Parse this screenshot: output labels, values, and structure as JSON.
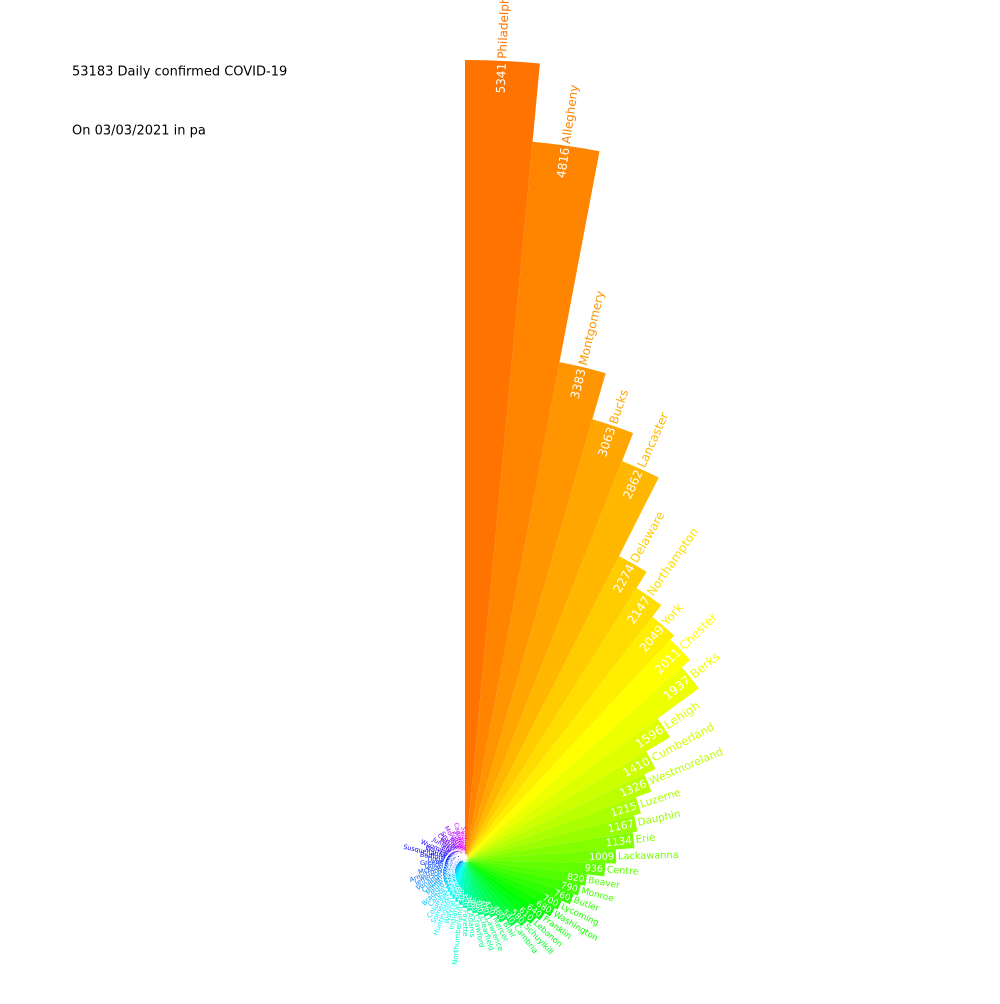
{
  "chart_data": {
    "type": "polar_bar",
    "title": "53183 Daily confirmed COVID-19",
    "subtitle": "On 03/03/2021 in pa",
    "categories": [
      "Philadelphia",
      "Allegheny",
      "Montgomery",
      "Bucks",
      "Lancaster",
      "Delaware",
      "Northampton",
      "York",
      "Chester",
      "Berks",
      "Lehigh",
      "Cumberland",
      "Westmoreland",
      "Luzerne",
      "Dauphin",
      "Erie",
      "Lackawanna",
      "Centre",
      "Beaver",
      "Monroe",
      "Butler",
      "Lycoming",
      "Washington",
      "Franklin",
      "Lebanon",
      "Schuylkill",
      "Cambria",
      "Blair",
      "Mercer",
      "Lawrence",
      "Clearfield",
      "Crawford",
      "Adams",
      "Fayette",
      "Northumberland",
      "Indiana",
      "Wayne",
      "Huntingdon",
      "Somerset",
      "Columbia",
      "Carbon",
      "Bradford",
      "Mifflin",
      "Clarion",
      "Venango",
      "Jefferson",
      "Armstrong",
      "McKean",
      "Union",
      "Greene",
      "Tioga",
      "Bedford",
      "Susquehanna",
      "Warren",
      "Wyoming",
      "Elk",
      "Juniata",
      "Perry",
      "Clinton",
      "Snyder",
      "Pike",
      "Montour",
      "Fulton",
      "Potter",
      "Cameron",
      "Forest",
      "Sullivan"
    ],
    "values": [
      5341,
      4816,
      3383,
      3063,
      2862,
      2274,
      2147,
      2049,
      2011,
      1937,
      1596,
      1410,
      1326,
      1215,
      1167,
      1134,
      1009,
      936,
      820,
      790,
      760,
      700,
      680,
      640,
      610,
      580,
      540,
      480,
      420,
      400,
      380,
      360,
      340,
      320,
      300,
      285,
      270,
      255,
      240,
      225,
      210,
      200,
      190,
      180,
      170,
      160,
      150,
      140,
      135,
      130,
      125,
      120,
      115,
      110,
      105,
      100,
      95,
      90,
      85,
      80,
      75,
      70,
      65,
      60,
      55,
      50,
      47
    ],
    "colors": [
      "hsl(27,100%,50%)",
      "hsl(31,100%,50%)",
      "hsl(35,100%,50%)",
      "hsl(39,100%,50%)",
      "hsl(43,100%,50%)",
      "hsl(48,100%,50%)",
      "hsl(52,100%,50%)",
      "hsl(56,100%,50%)",
      "hsl(60,100%,50%)",
      "hsl(64,100%,50%)",
      "hsl(68,100%,50%)",
      "hsl(72,100%,50%)",
      "hsl(76,100%,50%)",
      "hsl(80,100%,50%)",
      "hsl(84,100%,50%)",
      "hsl(89,100%,50%)",
      "hsl(93,100%,50%)",
      "hsl(97,100%,50%)",
      "hsl(101,100%,50%)",
      "hsl(105,100%,50%)",
      "hsl(109,100%,50%)",
      "hsl(113,100%,50%)",
      "hsl(117,100%,50%)",
      "hsl(121,100%,50%)",
      "hsl(125,100%,50%)",
      "hsl(130,100%,50%)",
      "hsl(134,100%,50%)",
      "hsl(138,100%,50%)",
      "hsl(142,100%,50%)",
      "hsl(146,100%,50%)",
      "hsl(150,100%,50%)",
      "hsl(154,100%,50%)",
      "hsl(158,100%,50%)",
      "hsl(162,100%,50%)",
      "hsl(166,100%,50%)",
      "hsl(171,100%,50%)",
      "hsl(175,100%,50%)",
      "hsl(179,100%,50%)",
      "hsl(183,100%,50%)",
      "hsl(187,100%,50%)",
      "hsl(191,100%,50%)",
      "hsl(195,100%,50%)",
      "hsl(199,100%,50%)",
      "hsl(203,100%,50%)",
      "hsl(207,100%,50%)",
      "hsl(212,100%,50%)",
      "hsl(216,100%,50%)",
      "hsl(220,100%,50%)",
      "hsl(224,100%,50%)",
      "hsl(228,100%,50%)",
      "hsl(232,100%,50%)",
      "hsl(236,100%,50%)",
      "hsl(240,100%,50%)",
      "hsl(244,100%,50%)",
      "hsl(248,100%,50%)",
      "hsl(253,100%,50%)",
      "hsl(257,100%,50%)",
      "hsl(261,100%,50%)",
      "hsl(265,100%,50%)",
      "hsl(269,100%,50%)",
      "hsl(273,100%,50%)",
      "hsl(277,100%,50%)",
      "hsl(281,100%,50%)",
      "hsl(285,100%,50%)",
      "hsl(289,100%,50%)",
      "hsl(294,100%,50%)",
      "hsl(298,100%,50%)"
    ]
  }
}
